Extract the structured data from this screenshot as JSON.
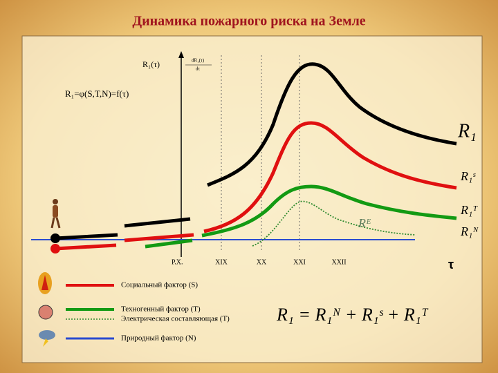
{
  "title": "Динамика пожарного риска на Земле",
  "axis": {
    "y_label": "R₁(τ)",
    "fraction_top": "dR₁(τ)",
    "fraction_bottom": "dτ",
    "formula": "R₁=φ(S,T,N)=f(τ)",
    "x_label": "τ",
    "periods": [
      "Р.Х.",
      "XIX",
      "XX",
      "XXI",
      "XXII"
    ]
  },
  "curve_labels": {
    "total": "R₁",
    "social": "R₁ˢ",
    "technogenic": "R₁ᵀ",
    "natural": "R₁ᴺ",
    "electric": "Rᴱ"
  },
  "legend": [
    "Социальный фактор (S)",
    "Техногенный фактор (T)",
    "Электрическая составляющая (T)",
    "Природный фактор (N)"
  ],
  "equation": "R₁ = R₁ᴺ + R₁ˢ + R₁ᵀ"
}
